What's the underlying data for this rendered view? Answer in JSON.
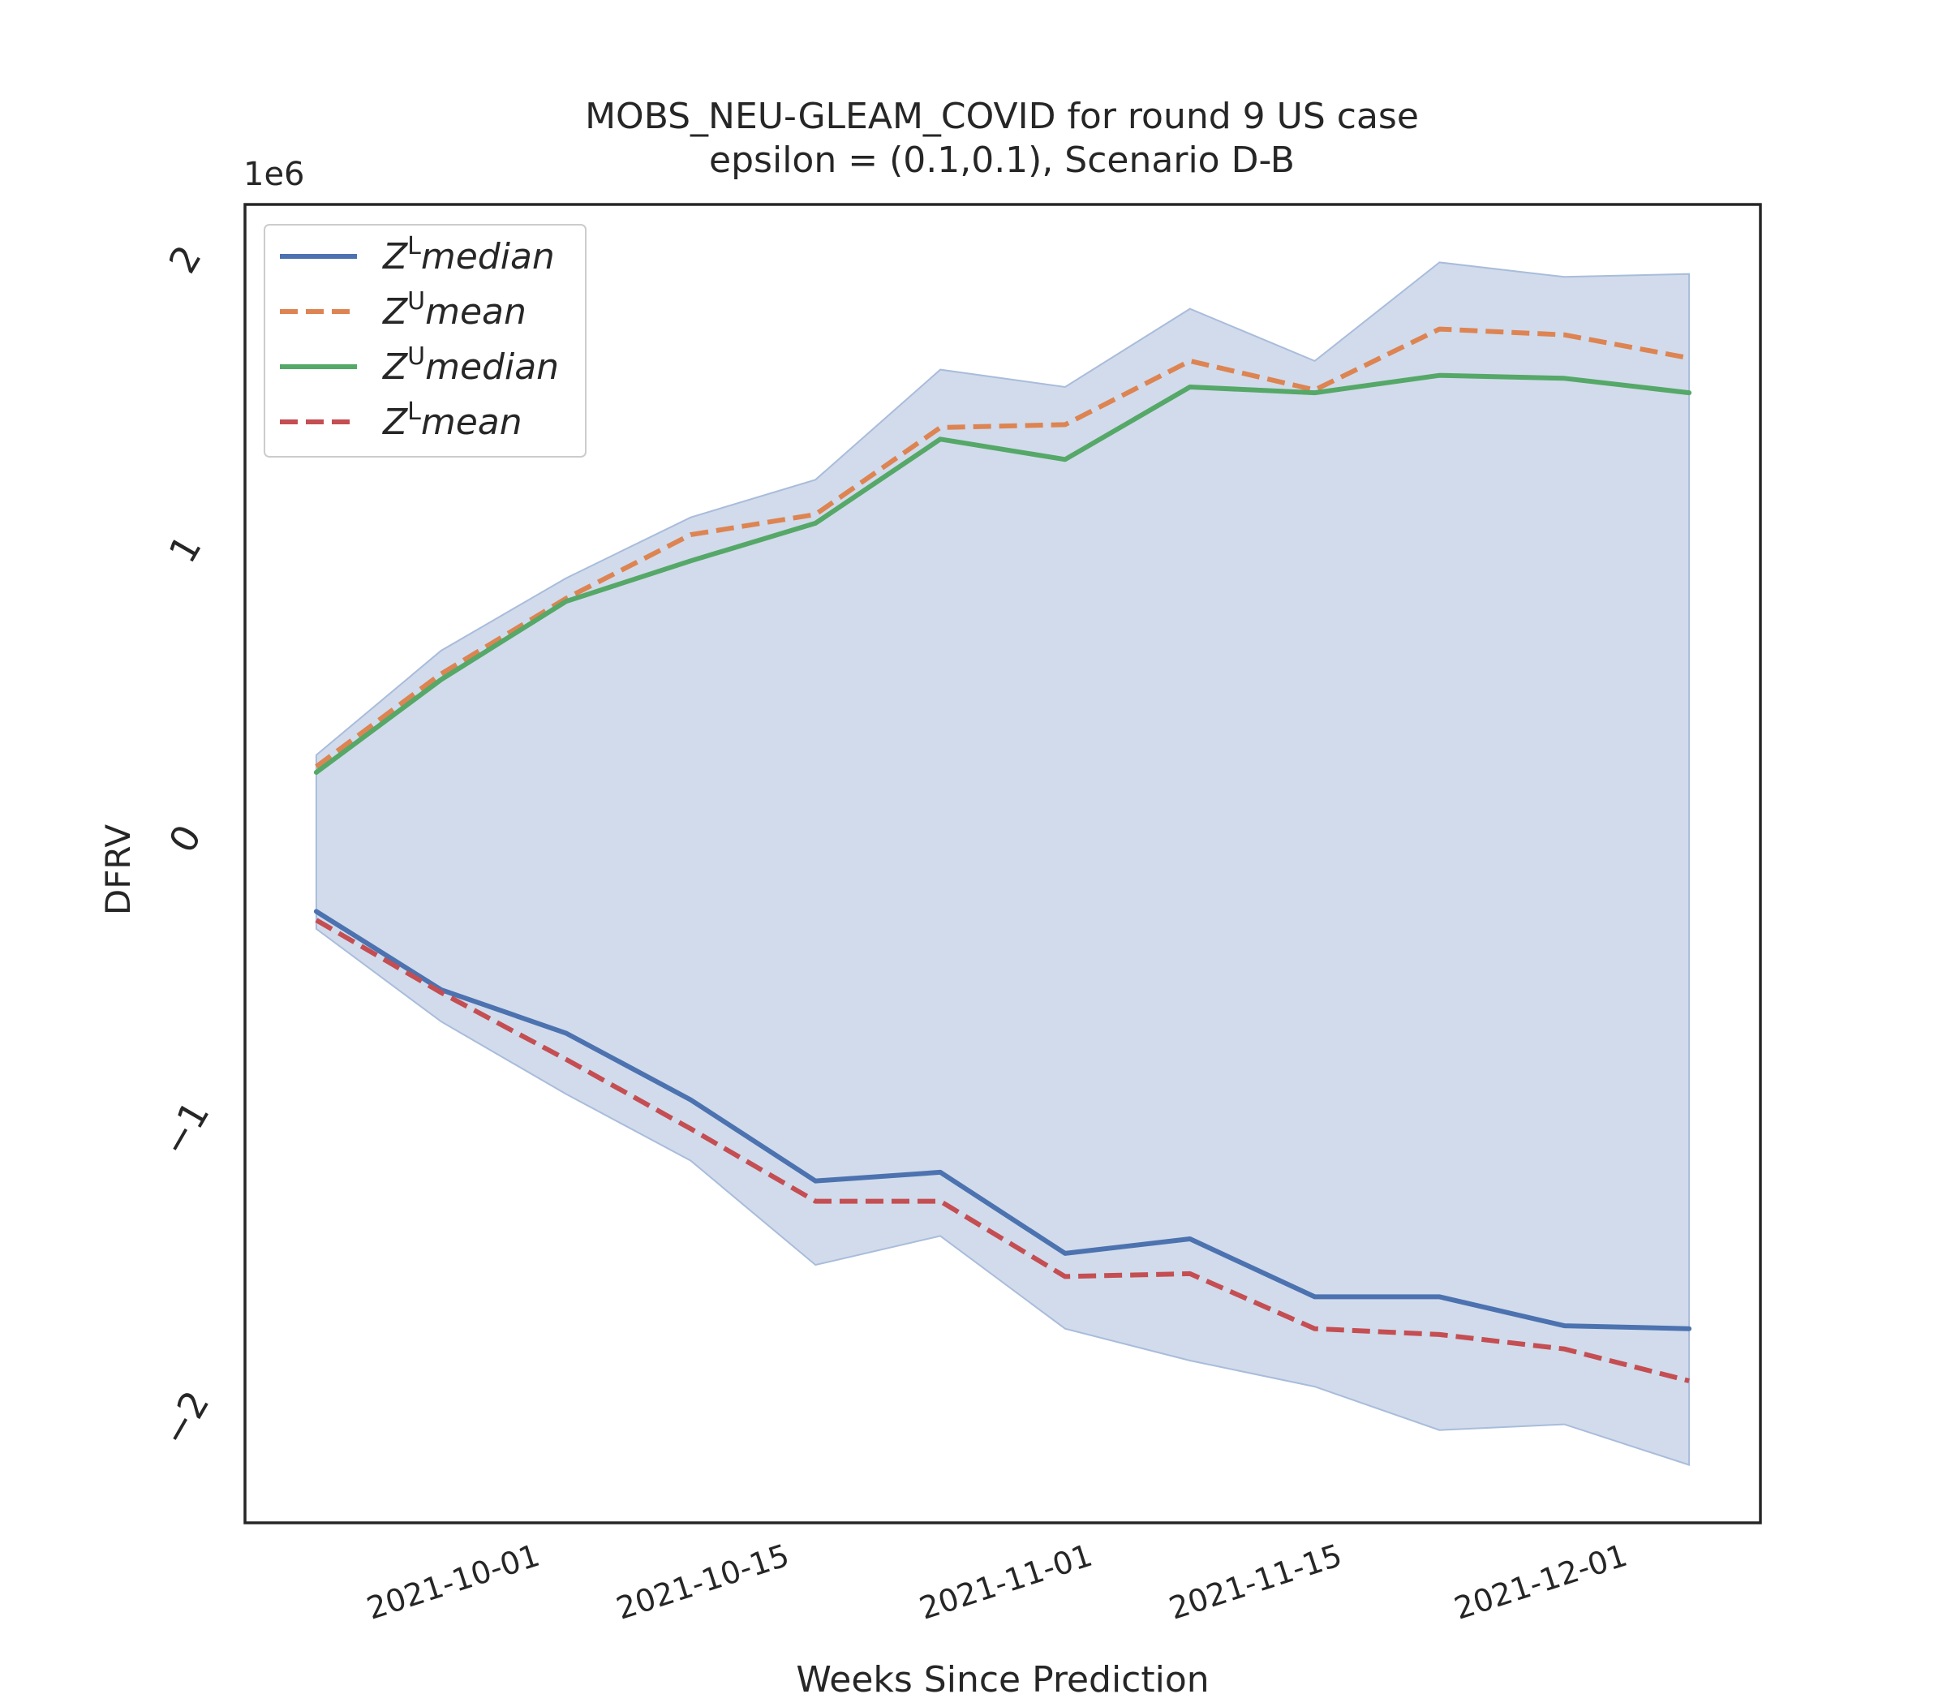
{
  "chart_data": {
    "type": "line",
    "title": "MOBS_NEU-GLEAM_COVID for round 9 US  case",
    "subtitle": "epsilon = (0.1,0.1), Scenario D-B",
    "xlabel": "Weeks Since Prediction",
    "ylabel": "DFRV",
    "y_offset_label": "1e6",
    "ylim": [
      -2.35,
      2.2
    ],
    "y_ticks": [
      -2,
      -1,
      0,
      1,
      2
    ],
    "y_tick_labels": [
      "−2",
      "−1",
      "0",
      "1",
      "2"
    ],
    "xlim": [
      "2021-09-15",
      "2021-12-09"
    ],
    "x_ticks": [
      "2021-10-01",
      "2021-10-15",
      "2021-11-01",
      "2021-11-15",
      "2021-12-01"
    ],
    "x": [
      "2021-09-19",
      "2021-09-26",
      "2021-10-03",
      "2021-10-10",
      "2021-10-17",
      "2021-10-24",
      "2021-10-31",
      "2021-11-07",
      "2021-11-14",
      "2021-11-21",
      "2021-11-28",
      "2021-12-05"
    ],
    "grid": false,
    "legend_position": "top-left",
    "band": {
      "upper": [
        0.3,
        0.66,
        0.91,
        1.12,
        1.25,
        1.63,
        1.57,
        1.84,
        1.66,
        2.0,
        1.95,
        1.96
      ],
      "lower": [
        -0.3,
        -0.62,
        -0.87,
        -1.1,
        -1.46,
        -1.36,
        -1.68,
        -1.79,
        -1.88,
        -2.03,
        -2.01,
        -2.15
      ],
      "color": "#d1dbeb"
    },
    "series": [
      {
        "name": "Z^L median",
        "legend_main": "Z",
        "legend_sup": "L",
        "legend_rest": "median",
        "style": "solid",
        "color": "#4c72b0",
        "values": [
          -0.24,
          -0.51,
          -0.66,
          -0.89,
          -1.17,
          -1.14,
          -1.42,
          -1.37,
          -1.57,
          -1.57,
          -1.67,
          -1.68
        ]
      },
      {
        "name": "Z^U mean",
        "legend_main": "Z",
        "legend_sup": "U",
        "legend_rest": "mean",
        "style": "dashed",
        "color": "#dd8452",
        "values": [
          0.26,
          0.58,
          0.84,
          1.06,
          1.13,
          1.43,
          1.44,
          1.66,
          1.56,
          1.77,
          1.75,
          1.67
        ]
      },
      {
        "name": "Z^U median",
        "legend_main": "Z",
        "legend_sup": "U",
        "legend_rest": "median",
        "style": "solid",
        "color": "#55a868",
        "values": [
          0.24,
          0.56,
          0.83,
          0.97,
          1.1,
          1.39,
          1.32,
          1.57,
          1.55,
          1.61,
          1.6,
          1.55
        ]
      },
      {
        "name": "Z^L mean",
        "legend_main": "Z",
        "legend_sup": "L",
        "legend_rest": "mean",
        "style": "dashed",
        "color": "#c44e52",
        "values": [
          -0.27,
          -0.52,
          -0.75,
          -0.99,
          -1.24,
          -1.24,
          -1.5,
          -1.49,
          -1.68,
          -1.7,
          -1.75,
          -1.86
        ]
      }
    ]
  }
}
